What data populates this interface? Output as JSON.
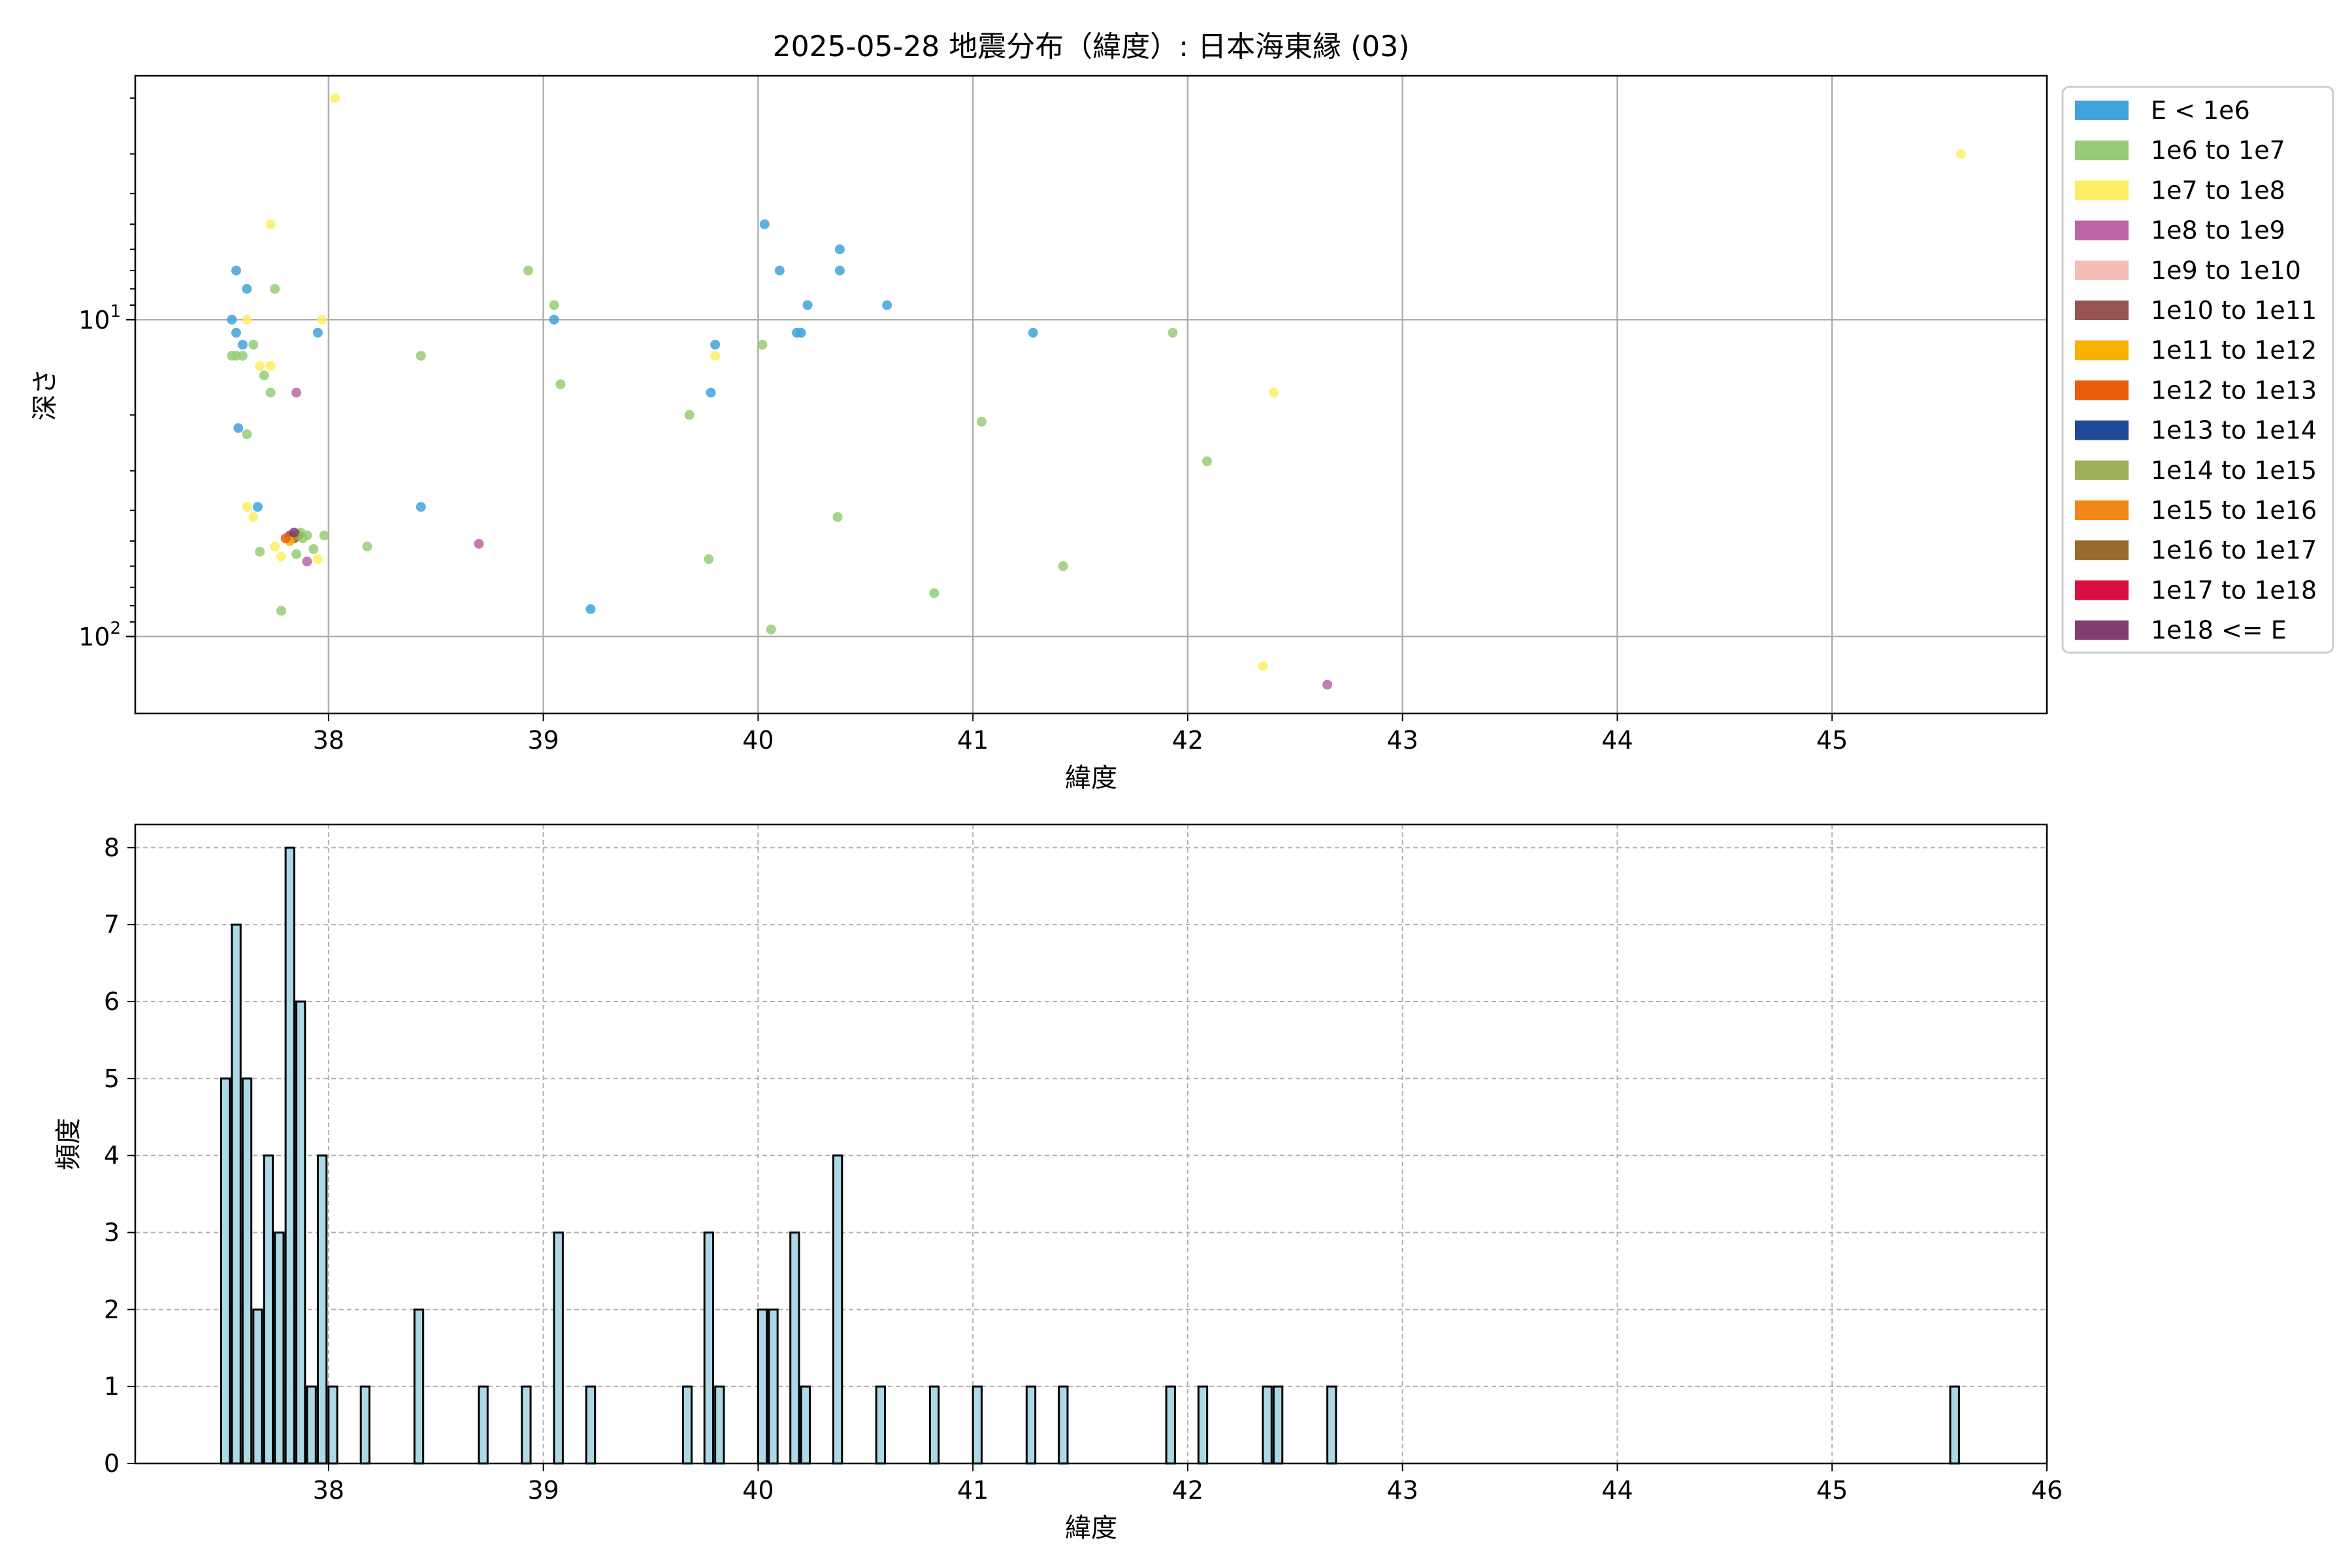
{
  "figure": {
    "title": "2025-05-28 地震分布（緯度）: 日本海東縁 (03)"
  },
  "chart_data": [
    {
      "type": "scatter",
      "xlabel": "緯度",
      "ylabel": "深さ",
      "xlim": [
        37.1,
        46.0
      ],
      "ylim": [
        175,
        1.7
      ],
      "y_scale": "log",
      "y_inverted": true,
      "x_ticks": [
        "38",
        "39",
        "40",
        "41",
        "42",
        "43",
        "44",
        "45"
      ],
      "y_ticks": [
        {
          "value": 10,
          "base": "10",
          "exp": "1"
        },
        {
          "value": 100,
          "base": "10",
          "exp": "2"
        }
      ],
      "grid": true,
      "legend_position": "outside right",
      "legend": [
        {
          "label": "E < 1e6",
          "color": "#3fa3dc"
        },
        {
          "label": "1e6 to 1e7",
          "color": "#95cc77"
        },
        {
          "label": "1e7 to 1e8",
          "color": "#fdee65"
        },
        {
          "label": "1e8 to 1e9",
          "color": "#bb64a6"
        },
        {
          "label": "1e9 to 1e10",
          "color": "#f5bdb7"
        },
        {
          "label": "1e10 to 1e11",
          "color": "#975450"
        },
        {
          "label": "1e11 to 1e12",
          "color": "#f7b200"
        },
        {
          "label": "1e12 to 1e13",
          "color": "#e95e0a"
        },
        {
          "label": "1e13 to 1e14",
          "color": "#1e4996"
        },
        {
          "label": "1e14 to 1e15",
          "color": "#9bb057"
        },
        {
          "label": "1e15 to 1e16",
          "color": "#f18619"
        },
        {
          "label": "1e16 to 1e17",
          "color": "#976c2c"
        },
        {
          "label": "1e17 to 1e18",
          "color": "#d9103f"
        },
        {
          "label": "1e18 <= E",
          "color": "#823d71"
        }
      ],
      "points": [
        {
          "x": 37.55,
          "y": 10,
          "c": 0
        },
        {
          "x": 37.57,
          "y": 7,
          "c": 0
        },
        {
          "x": 37.57,
          "y": 11,
          "c": 0
        },
        {
          "x": 37.6,
          "y": 12,
          "c": 0
        },
        {
          "x": 37.62,
          "y": 8,
          "c": 0
        },
        {
          "x": 37.58,
          "y": 22,
          "c": 0
        },
        {
          "x": 37.67,
          "y": 39,
          "c": 0
        },
        {
          "x": 37.95,
          "y": 11,
          "c": 0
        },
        {
          "x": 38.43,
          "y": 39,
          "c": 0
        },
        {
          "x": 39.05,
          "y": 10,
          "c": 0
        },
        {
          "x": 39.22,
          "y": 82,
          "c": 0
        },
        {
          "x": 39.8,
          "y": 12,
          "c": 0
        },
        {
          "x": 39.78,
          "y": 17,
          "c": 0
        },
        {
          "x": 40.03,
          "y": 5,
          "c": 0
        },
        {
          "x": 40.1,
          "y": 7,
          "c": 0
        },
        {
          "x": 40.18,
          "y": 11,
          "c": 0
        },
        {
          "x": 40.2,
          "y": 11,
          "c": 0
        },
        {
          "x": 40.23,
          "y": 9,
          "c": 0
        },
        {
          "x": 40.38,
          "y": 6,
          "c": 0
        },
        {
          "x": 40.38,
          "y": 7,
          "c": 0
        },
        {
          "x": 40.6,
          "y": 9,
          "c": 0
        },
        {
          "x": 41.28,
          "y": 11,
          "c": 0
        },
        {
          "x": 37.55,
          "y": 13,
          "c": 1
        },
        {
          "x": 37.57,
          "y": 13,
          "c": 1
        },
        {
          "x": 37.6,
          "y": 13,
          "c": 1
        },
        {
          "x": 37.62,
          "y": 23,
          "c": 1
        },
        {
          "x": 37.65,
          "y": 12,
          "c": 1
        },
        {
          "x": 37.7,
          "y": 15,
          "c": 1
        },
        {
          "x": 37.73,
          "y": 17,
          "c": 1
        },
        {
          "x": 37.75,
          "y": 8,
          "c": 1
        },
        {
          "x": 37.68,
          "y": 54,
          "c": 1
        },
        {
          "x": 37.78,
          "y": 83,
          "c": 1
        },
        {
          "x": 37.82,
          "y": 49,
          "c": 1
        },
        {
          "x": 37.85,
          "y": 48,
          "c": 1
        },
        {
          "x": 37.87,
          "y": 47,
          "c": 1
        },
        {
          "x": 37.88,
          "y": 49,
          "c": 1
        },
        {
          "x": 37.9,
          "y": 48,
          "c": 1
        },
        {
          "x": 37.85,
          "y": 55,
          "c": 1
        },
        {
          "x": 37.93,
          "y": 53,
          "c": 1
        },
        {
          "x": 37.98,
          "y": 48,
          "c": 1
        },
        {
          "x": 38.18,
          "y": 52,
          "c": 1
        },
        {
          "x": 38.43,
          "y": 13,
          "c": 1
        },
        {
          "x": 38.93,
          "y": 7,
          "c": 1
        },
        {
          "x": 39.05,
          "y": 9,
          "c": 1
        },
        {
          "x": 39.08,
          "y": 16,
          "c": 1
        },
        {
          "x": 39.68,
          "y": 20,
          "c": 1
        },
        {
          "x": 39.77,
          "y": 57,
          "c": 1
        },
        {
          "x": 40.02,
          "y": 12,
          "c": 1
        },
        {
          "x": 40.06,
          "y": 95,
          "c": 1
        },
        {
          "x": 40.37,
          "y": 42,
          "c": 1
        },
        {
          "x": 40.82,
          "y": 73,
          "c": 1
        },
        {
          "x": 41.04,
          "y": 21,
          "c": 1
        },
        {
          "x": 41.42,
          "y": 60,
          "c": 1
        },
        {
          "x": 41.93,
          "y": 11,
          "c": 1
        },
        {
          "x": 42.09,
          "y": 28,
          "c": 1
        },
        {
          "x": 38.03,
          "y": 2,
          "c": 2
        },
        {
          "x": 37.73,
          "y": 5,
          "c": 2
        },
        {
          "x": 37.62,
          "y": 10,
          "c": 2
        },
        {
          "x": 37.68,
          "y": 14,
          "c": 2
        },
        {
          "x": 37.73,
          "y": 14,
          "c": 2
        },
        {
          "x": 37.97,
          "y": 10,
          "c": 2
        },
        {
          "x": 37.62,
          "y": 39,
          "c": 2
        },
        {
          "x": 37.65,
          "y": 42,
          "c": 2
        },
        {
          "x": 37.75,
          "y": 52,
          "c": 2
        },
        {
          "x": 37.78,
          "y": 56,
          "c": 2
        },
        {
          "x": 37.95,
          "y": 57,
          "c": 2
        },
        {
          "x": 39.8,
          "y": 13,
          "c": 2
        },
        {
          "x": 42.35,
          "y": 124,
          "c": 2
        },
        {
          "x": 42.4,
          "y": 17,
          "c": 2
        },
        {
          "x": 45.6,
          "y": 3,
          "c": 2
        },
        {
          "x": 37.85,
          "y": 17,
          "c": 3
        },
        {
          "x": 37.9,
          "y": 58,
          "c": 3
        },
        {
          "x": 38.7,
          "y": 51,
          "c": 3
        },
        {
          "x": 42.65,
          "y": 142,
          "c": 3
        },
        {
          "x": 37.82,
          "y": 48,
          "c": 5
        },
        {
          "x": 37.84,
          "y": 49,
          "c": 5
        },
        {
          "x": 37.82,
          "y": 50,
          "c": 6
        },
        {
          "x": 37.8,
          "y": 49,
          "c": 7
        },
        {
          "x": 37.86,
          "y": 48,
          "c": 9
        },
        {
          "x": 37.84,
          "y": 47,
          "c": 13
        }
      ]
    },
    {
      "type": "bar",
      "xlabel": "緯度",
      "ylabel": "頻度",
      "xlim": [
        37.1,
        46.0
      ],
      "ylim": [
        0,
        8.3
      ],
      "x_ticks": [
        "38",
        "39",
        "40",
        "41",
        "42",
        "43",
        "44",
        "45",
        "46"
      ],
      "y_ticks": [
        "0",
        "1",
        "2",
        "3",
        "4",
        "5",
        "6",
        "7",
        "8"
      ],
      "grid": "dashed",
      "bin_width": 0.0405,
      "bar_color": "#add8e6",
      "bins": [
        {
          "x": 37.5,
          "count": 5
        },
        {
          "x": 37.55,
          "count": 7
        },
        {
          "x": 37.6,
          "count": 5
        },
        {
          "x": 37.65,
          "count": 2
        },
        {
          "x": 37.7,
          "count": 4
        },
        {
          "x": 37.75,
          "count": 3
        },
        {
          "x": 37.8,
          "count": 8
        },
        {
          "x": 37.85,
          "count": 6
        },
        {
          "x": 37.9,
          "count": 1
        },
        {
          "x": 37.95,
          "count": 4
        },
        {
          "x": 38.0,
          "count": 1
        },
        {
          "x": 38.15,
          "count": 1
        },
        {
          "x": 38.4,
          "count": 2
        },
        {
          "x": 38.7,
          "count": 1
        },
        {
          "x": 38.9,
          "count": 1
        },
        {
          "x": 39.05,
          "count": 3
        },
        {
          "x": 39.2,
          "count": 1
        },
        {
          "x": 39.65,
          "count": 1
        },
        {
          "x": 39.75,
          "count": 3
        },
        {
          "x": 39.8,
          "count": 1
        },
        {
          "x": 40.0,
          "count": 2
        },
        {
          "x": 40.05,
          "count": 2
        },
        {
          "x": 40.15,
          "count": 3
        },
        {
          "x": 40.2,
          "count": 1
        },
        {
          "x": 40.35,
          "count": 4
        },
        {
          "x": 40.55,
          "count": 1
        },
        {
          "x": 40.8,
          "count": 1
        },
        {
          "x": 41.0,
          "count": 1
        },
        {
          "x": 41.25,
          "count": 1
        },
        {
          "x": 41.4,
          "count": 1
        },
        {
          "x": 41.9,
          "count": 1
        },
        {
          "x": 42.05,
          "count": 1
        },
        {
          "x": 42.35,
          "count": 1
        },
        {
          "x": 42.4,
          "count": 1
        },
        {
          "x": 42.65,
          "count": 1
        },
        {
          "x": 45.55,
          "count": 1
        }
      ]
    }
  ]
}
